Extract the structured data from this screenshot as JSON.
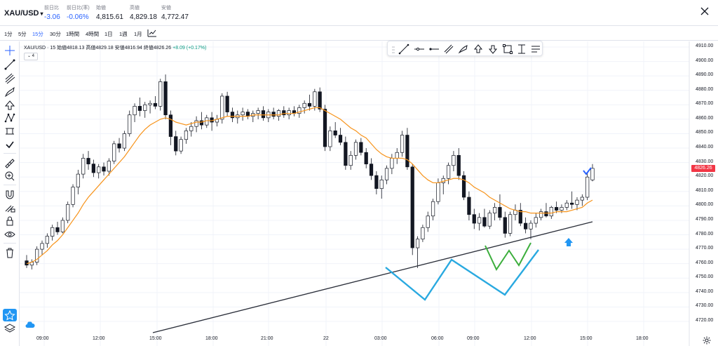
{
  "header": {
    "symbol": "XAU/USD",
    "stats": [
      {
        "label": "前日比",
        "value": "-3.06",
        "negative": true
      },
      {
        "label": "前日比(率)",
        "value": "-0.06%",
        "negative": true
      },
      {
        "label": "始値",
        "value": "4,815.61",
        "negative": false
      },
      {
        "label": "高値",
        "value": "4,829.18",
        "negative": false
      },
      {
        "label": "安値",
        "value": "4,772.47",
        "negative": false
      }
    ]
  },
  "intervals": [
    "1分",
    "5分",
    "15分",
    "30分",
    "1時間",
    "4時間",
    "1日",
    "1週",
    "1月"
  ],
  "active_interval": "15分",
  "legend": {
    "symbol": "XAU/USD · 15",
    "open_label": "始値",
    "open": "4818.13",
    "high_label": "高値",
    "high": "4829.18",
    "low_label": "安値",
    "low": "4816.94",
    "close_label": "終値",
    "close": "4826.26",
    "change": "+8.09 (+0.17%)",
    "collapse": "⌄ 4"
  },
  "current_price": "4826.26",
  "colors": {
    "up": "#ffffff",
    "down": "#131722",
    "ma": "#f7931a",
    "trendline": "#2a2e39",
    "w_big": "#29a9e0",
    "w_small": "#3cae3c",
    "arrow": "#2196f3",
    "badge": "#f23645",
    "accent": "#2962ff"
  },
  "icons": {
    "left_toolbar": [
      "crosshair-icon",
      "trend-line-icon",
      "pitchfork-icon",
      "brush-icon",
      "arrow-up-icon",
      "pattern-icon",
      "measure-icon",
      "checkmark-icon",
      "ruler-icon",
      "zoom-in-icon",
      "magnet-icon",
      "lock-drawing-icon",
      "lock-icon",
      "eye-icon",
      "trash-icon",
      "star-icon",
      "layers-icon",
      "cloud-icon"
    ],
    "draw_toolbar": [
      "line-icon",
      "horizontal-ray-icon",
      "horizontal-line-icon",
      "parallel-channel-icon",
      "fib-icon",
      "arrow-mark-up-icon",
      "arrow-mark-down-icon",
      "rectangle-icon",
      "text-cursor-icon",
      "text-icon"
    ]
  },
  "price_axis": [
    "4910.00",
    "4900.00",
    "4890.00",
    "4880.00",
    "4870.00",
    "4860.00",
    "4850.00",
    "4840.00",
    "4830.00",
    "4820.00",
    "4810.00",
    "4800.00",
    "4790.00",
    "4780.00",
    "4770.00",
    "4760.00",
    "4750.00",
    "4740.00",
    "4730.00",
    "4720.00"
  ],
  "time_axis": [
    "09:00",
    "12:00",
    "15:00",
    "18:00",
    "21:00",
    "22",
    "03:00",
    "06:00",
    "09:00",
    "12:00",
    "15:00",
    "18:00"
  ],
  "chart_data": {
    "type": "candlestick",
    "symbol": "XAU/USD",
    "interval": "15",
    "ylim": [
      4715,
      4915
    ],
    "grid": true,
    "candles": [
      [
        4762,
        4766,
        4757,
        4759
      ],
      [
        4759,
        4763,
        4756,
        4761
      ],
      [
        4761,
        4772,
        4759,
        4770
      ],
      [
        4770,
        4776,
        4766,
        4774
      ],
      [
        4774,
        4781,
        4771,
        4779
      ],
      [
        4779,
        4787,
        4776,
        4785
      ],
      [
        4785,
        4789,
        4780,
        4782
      ],
      [
        4782,
        4792,
        4781,
        4790
      ],
      [
        4790,
        4803,
        4788,
        4801
      ],
      [
        4801,
        4815,
        4799,
        4813
      ],
      [
        4813,
        4825,
        4808,
        4822
      ],
      [
        4822,
        4836,
        4819,
        4833
      ],
      [
        4833,
        4838,
        4825,
        4829
      ],
      [
        4829,
        4832,
        4820,
        4823
      ],
      [
        4823,
        4829,
        4819,
        4827
      ],
      [
        4827,
        4830,
        4821,
        4824
      ],
      [
        4824,
        4833,
        4821,
        4831
      ],
      [
        4831,
        4845,
        4829,
        4843
      ],
      [
        4843,
        4847,
        4837,
        4840
      ],
      [
        4840,
        4852,
        4838,
        4850
      ],
      [
        4850,
        4866,
        4848,
        4863
      ],
      [
        4863,
        4871,
        4858,
        4869
      ],
      [
        4869,
        4875,
        4862,
        4866
      ],
      [
        4866,
        4872,
        4861,
        4870
      ],
      [
        4870,
        4873,
        4864,
        4871
      ],
      [
        4871,
        4876,
        4867,
        4869
      ],
      [
        4869,
        4888,
        4866,
        4886
      ],
      [
        4886,
        4891,
        4860,
        4863
      ],
      [
        4863,
        4866,
        4842,
        4848
      ],
      [
        4848,
        4852,
        4835,
        4838
      ],
      [
        4838,
        4848,
        4836,
        4846
      ],
      [
        4846,
        4854,
        4843,
        4852
      ],
      [
        4852,
        4858,
        4848,
        4855
      ],
      [
        4855,
        4862,
        4851,
        4859
      ],
      [
        4859,
        4865,
        4853,
        4856
      ],
      [
        4856,
        4863,
        4854,
        4861
      ],
      [
        4861,
        4865,
        4852,
        4858
      ],
      [
        4858,
        4863,
        4855,
        4860
      ],
      [
        4860,
        4878,
        4857,
        4876
      ],
      [
        4876,
        4879,
        4862,
        4865
      ],
      [
        4865,
        4868,
        4858,
        4861
      ],
      [
        4861,
        4866,
        4857,
        4863
      ],
      [
        4863,
        4868,
        4859,
        4865
      ],
      [
        4865,
        4867,
        4860,
        4862
      ],
      [
        4862,
        4866,
        4858,
        4864
      ],
      [
        4864,
        4868,
        4860,
        4866
      ],
      [
        4866,
        4869,
        4859,
        4861
      ],
      [
        4861,
        4867,
        4858,
        4865
      ],
      [
        4865,
        4868,
        4860,
        4862
      ],
      [
        4862,
        4867,
        4859,
        4866
      ],
      [
        4866,
        4869,
        4861,
        4863
      ],
      [
        4863,
        4868,
        4860,
        4866
      ],
      [
        4866,
        4869,
        4862,
        4864
      ],
      [
        4864,
        4870,
        4861,
        4868
      ],
      [
        4868,
        4873,
        4864,
        4871
      ],
      [
        4871,
        4877,
        4866,
        4869
      ],
      [
        4869,
        4881,
        4866,
        4879
      ],
      [
        4879,
        4882,
        4865,
        4867
      ],
      [
        4867,
        4870,
        4838,
        4841
      ],
      [
        4841,
        4855,
        4838,
        4852
      ],
      [
        4852,
        4858,
        4847,
        4849
      ],
      [
        4849,
        4854,
        4842,
        4844
      ],
      [
        4844,
        4848,
        4825,
        4828
      ],
      [
        4828,
        4838,
        4825,
        4835
      ],
      [
        4835,
        4846,
        4832,
        4844
      ],
      [
        4844,
        4847,
        4835,
        4837
      ],
      [
        4837,
        4840,
        4826,
        4829
      ],
      [
        4829,
        4833,
        4818,
        4821
      ],
      [
        4821,
        4824,
        4808,
        4812
      ],
      [
        4812,
        4821,
        4805,
        4818
      ],
      [
        4818,
        4828,
        4815,
        4826
      ],
      [
        4826,
        4836,
        4822,
        4833
      ],
      [
        4833,
        4840,
        4829,
        4837
      ],
      [
        4837,
        4852,
        4834,
        4849
      ],
      [
        4849,
        4854,
        4825,
        4827
      ],
      [
        4827,
        4829,
        4766,
        4771
      ],
      [
        4771,
        4779,
        4757,
        4777
      ],
      [
        4777,
        4787,
        4775,
        4785
      ],
      [
        4785,
        4796,
        4782,
        4793
      ],
      [
        4793,
        4805,
        4790,
        4803
      ],
      [
        4803,
        4819,
        4801,
        4816
      ],
      [
        4816,
        4821,
        4808,
        4819
      ],
      [
        4819,
        4830,
        4815,
        4828
      ],
      [
        4828,
        4838,
        4824,
        4835
      ],
      [
        4835,
        4840,
        4818,
        4821
      ],
      [
        4821,
        4824,
        4804,
        4806
      ],
      [
        4806,
        4810,
        4790,
        4794
      ],
      [
        4794,
        4798,
        4784,
        4788
      ],
      [
        4788,
        4795,
        4783,
        4792
      ],
      [
        4792,
        4798,
        4785,
        4786
      ],
      [
        4786,
        4797,
        4784,
        4795
      ],
      [
        4795,
        4802,
        4790,
        4799
      ],
      [
        4799,
        4808,
        4790,
        4792
      ],
      [
        4792,
        4796,
        4778,
        4781
      ],
      [
        4781,
        4796,
        4779,
        4794
      ],
      [
        4794,
        4801,
        4790,
        4797
      ],
      [
        4797,
        4802,
        4786,
        4788
      ],
      [
        4788,
        4792,
        4781,
        4784
      ],
      [
        4784,
        4790,
        4777,
        4788
      ],
      [
        4788,
        4795,
        4785,
        4792
      ],
      [
        4792,
        4798,
        4790,
        4796
      ],
      [
        4796,
        4802,
        4792,
        4793
      ],
      [
        4793,
        4800,
        4791,
        4799
      ],
      [
        4799,
        4803,
        4795,
        4797
      ],
      [
        4797,
        4801,
        4795,
        4799
      ],
      [
        4799,
        4804,
        4797,
        4802
      ],
      [
        4802,
        4810,
        4798,
        4801
      ],
      [
        4801,
        4806,
        4797,
        4804
      ],
      [
        4804,
        4808,
        4800,
        4806
      ],
      [
        4806,
        4823,
        4804,
        4820
      ],
      [
        4818,
        4829,
        4817,
        4826
      ]
    ],
    "moving_average": [
      4760,
      4761,
      4763,
      4766,
      4769,
      4773,
      4776,
      4780,
      4785,
      4790,
      4795,
      4801,
      4806,
      4810,
      4814,
      4818,
      4822,
      4826,
      4830,
      4834,
      4839,
      4844,
      4849,
      4853,
      4856,
      4858,
      4860,
      4861,
      4860,
      4858,
      4857,
      4856,
      4857,
      4858,
      4858,
      4859,
      4859,
      4860,
      4861,
      4862,
      4862,
      4862,
      4862,
      4862,
      4863,
      4863,
      4863,
      4863,
      4863,
      4863,
      4864,
      4864,
      4864,
      4865,
      4866,
      4867,
      4868,
      4868,
      4866,
      4864,
      4862,
      4860,
      4857,
      4854,
      4852,
      4849,
      4847,
      4843,
      4839,
      4836,
      4834,
      4833,
      4833,
      4833,
      4832,
      4829,
      4825,
      4821,
      4818,
      4816,
      4816,
      4817,
      4818,
      4819,
      4819,
      4818,
      4816,
      4813,
      4811,
      4809,
      4806,
      4804,
      4802,
      4800,
      4798,
      4797,
      4796,
      4796,
      4795,
      4795,
      4795,
      4795,
      4795,
      4796,
      4796,
      4796,
      4797,
      4798,
      4799,
      4802,
      4804
    ]
  }
}
